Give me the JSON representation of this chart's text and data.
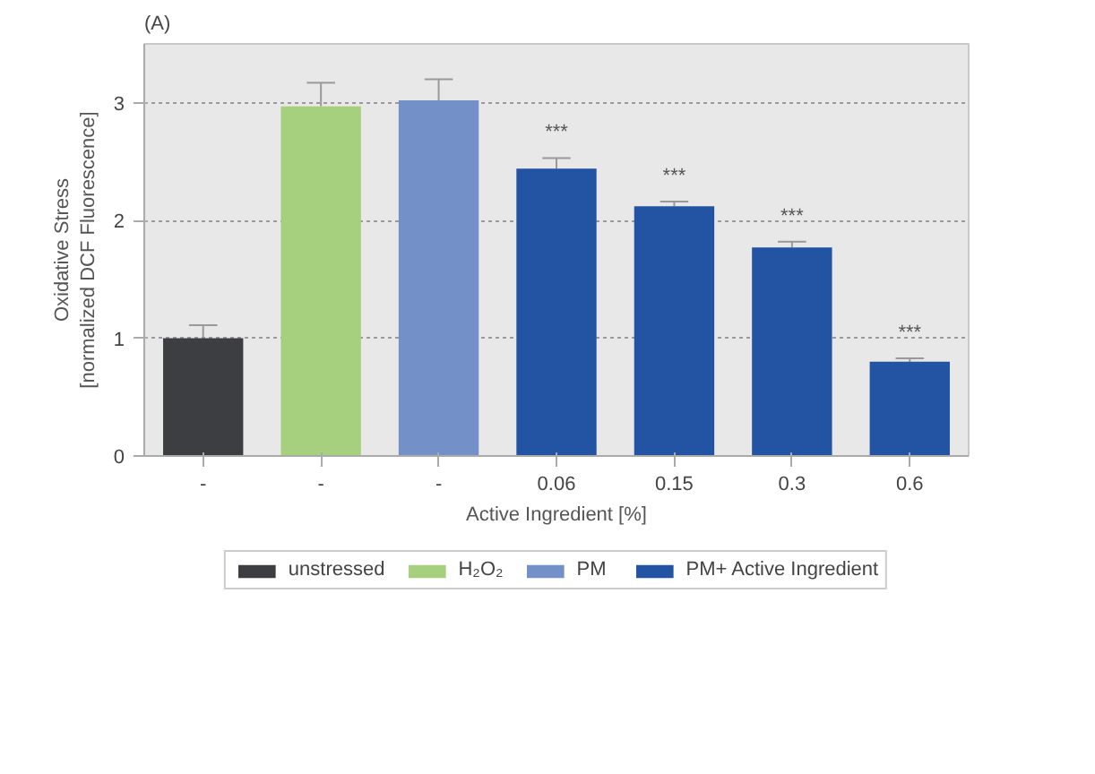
{
  "chart_data": {
    "type": "bar",
    "xlabel": "Active Ingredient [%]",
    "ylabel": "Oxidative Stress\n[normalized DCF Fluorescence]",
    "categories": [
      "-",
      "-",
      "-",
      "0.06",
      "0.15",
      "0.3",
      "0.6"
    ],
    "series": [
      {
        "name": "unstressed",
        "color": "#3c3e42",
        "values": [
          1.0,
          null,
          null,
          null,
          null,
          null,
          null
        ],
        "errors": [
          0.11,
          null,
          null,
          null,
          null,
          null,
          null
        ]
      },
      {
        "name": "H₂O₂",
        "color": "#a6d07e",
        "values": [
          null,
          2.97,
          null,
          null,
          null,
          null,
          null
        ],
        "errors": [
          null,
          0.2,
          null,
          null,
          null,
          null,
          null
        ]
      },
      {
        "name": "PM",
        "color": "#7390c8",
        "values": [
          null,
          null,
          3.02,
          null,
          null,
          null,
          null
        ],
        "errors": [
          null,
          null,
          0.18,
          null,
          null,
          null,
          null
        ]
      },
      {
        "name": "PM+ Active Ingredient",
        "color": "#2353a3",
        "values": [
          null,
          null,
          null,
          2.44,
          2.12,
          1.77,
          0.8
        ],
        "errors": [
          null,
          null,
          null,
          0.09,
          0.04,
          0.05,
          0.03
        ]
      }
    ],
    "ylim": [
      0,
      3.5
    ],
    "yticks": [
      0,
      1,
      2,
      3
    ],
    "grid": "y",
    "legend": "bottom",
    "annotations": [
      "(A)",
      "***",
      "***",
      "***",
      "***"
    ]
  }
}
